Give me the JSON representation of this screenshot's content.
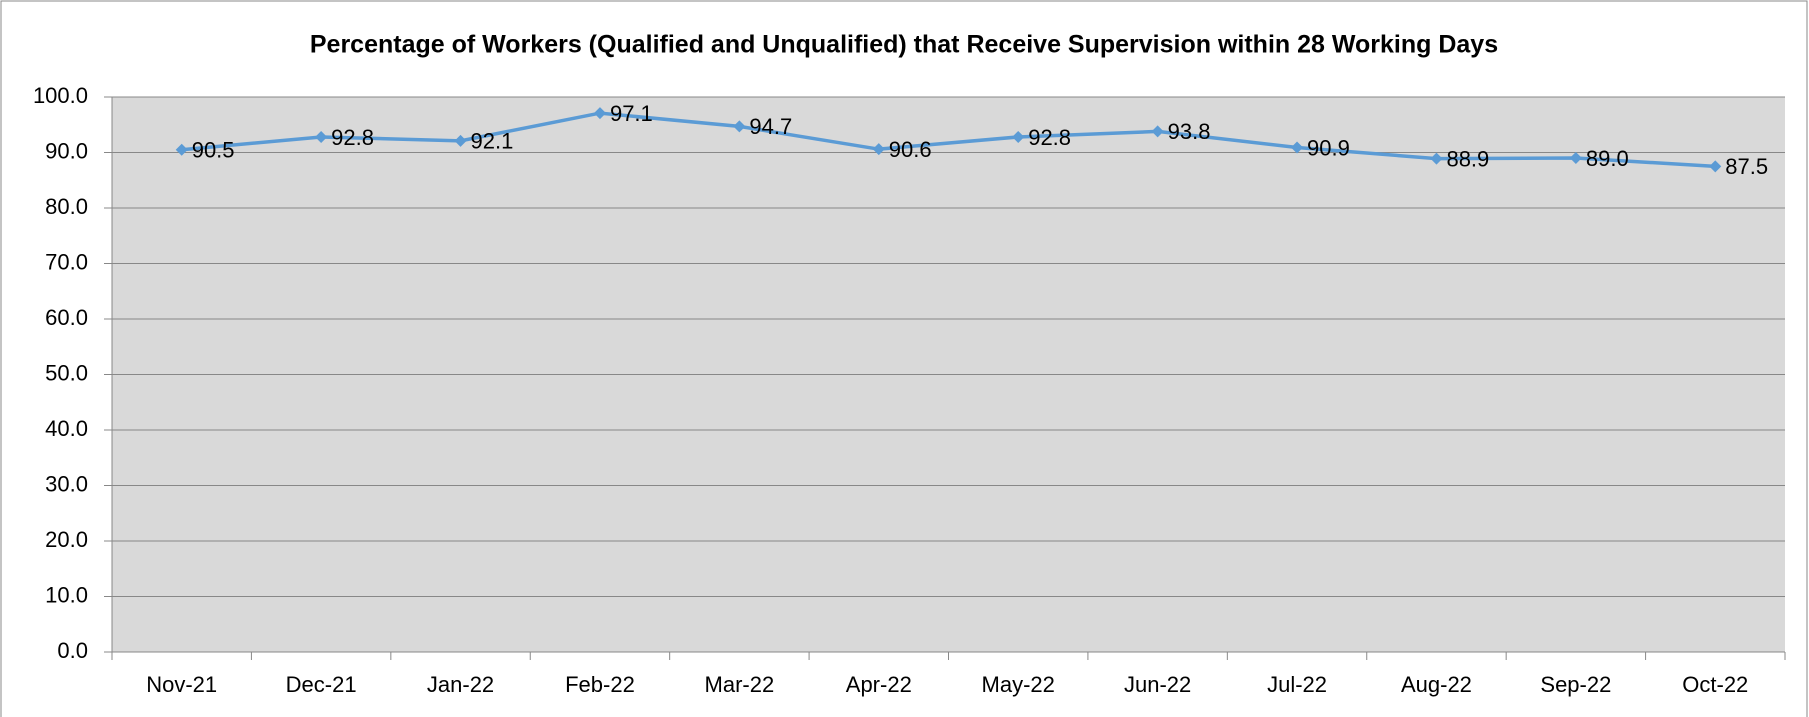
{
  "chart_data": {
    "type": "line",
    "title": "Percentage of Workers (Qualified and Unqualified) that Receive Supervision within 28 Working Days",
    "categories": [
      "Nov-21",
      "Dec-21",
      "Jan-22",
      "Feb-22",
      "Mar-22",
      "Apr-22",
      "May-22",
      "Jun-22",
      "Jul-22",
      "Aug-22",
      "Sep-22",
      "Oct-22"
    ],
    "values": [
      90.5,
      92.8,
      92.1,
      97.1,
      94.7,
      90.6,
      92.8,
      93.8,
      90.9,
      88.9,
      89.0,
      87.5
    ],
    "value_labels": [
      "90.5",
      "92.8",
      "92.1",
      "97.1",
      "94.7",
      "90.6",
      "92.8",
      "93.8",
      "90.9",
      "88.9",
      "89.0",
      "87.5"
    ],
    "color": "#5b9bd5",
    "ylim": [
      0,
      100
    ],
    "yticks": [
      {
        "value": 0,
        "label": "0.0"
      },
      {
        "value": 10,
        "label": "10.0"
      },
      {
        "value": 20,
        "label": "20.0"
      },
      {
        "value": 30,
        "label": "30.0"
      },
      {
        "value": 40,
        "label": "40.0"
      },
      {
        "value": 50,
        "label": "50.0"
      },
      {
        "value": 60,
        "label": "60.0"
      },
      {
        "value": 70,
        "label": "70.0"
      },
      {
        "value": 80,
        "label": "80.0"
      },
      {
        "value": 90,
        "label": "90.0"
      },
      {
        "value": 100,
        "label": "100.0"
      }
    ],
    "grid": true
  }
}
